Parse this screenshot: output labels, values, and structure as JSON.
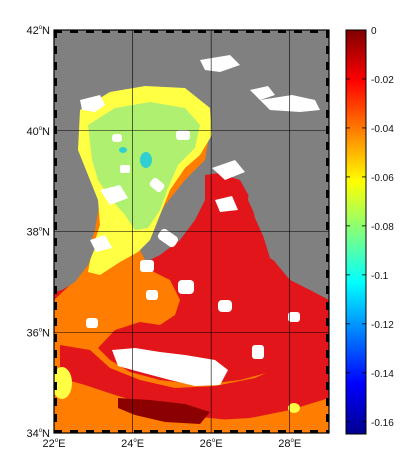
{
  "map": {
    "lat_ticks": [
      {
        "value": 42,
        "deg": "42",
        "hemi": "N"
      },
      {
        "value": 40,
        "deg": "40",
        "hemi": "N"
      },
      {
        "value": 38,
        "deg": "38",
        "hemi": "N"
      },
      {
        "value": 36,
        "deg": "36",
        "hemi": "N"
      },
      {
        "value": 34,
        "deg": "34",
        "hemi": "N"
      }
    ],
    "lon_ticks": [
      {
        "value": 22,
        "deg": "22",
        "hemi": "E"
      },
      {
        "value": 24,
        "deg": "24",
        "hemi": "E"
      },
      {
        "value": 26,
        "deg": "26",
        "hemi": "E"
      },
      {
        "value": 28,
        "deg": "28",
        "hemi": "E"
      }
    ],
    "lon_range": [
      22,
      29
    ],
    "lat_range": [
      34,
      42
    ],
    "land_color": "#808080",
    "grid": true
  },
  "colorbar": {
    "range": [
      -0.165,
      0
    ],
    "ticks": [
      "0",
      "-0.02",
      "-0.04",
      "-0.06",
      "-0.08",
      "-0.1",
      "-0.12",
      "-0.14",
      "-0.16"
    ],
    "tick_values": [
      0,
      -0.02,
      -0.04,
      -0.06,
      -0.08,
      -0.1,
      -0.12,
      -0.14,
      -0.16
    ],
    "colormap": "jet"
  },
  "field_colors": {
    "dark_red": "#8b0000",
    "red": "#e2161a",
    "orange": "#ff7d00",
    "yellow": "#ffff44",
    "light_green": "#b0f070",
    "cyan": "#30d0d0"
  }
}
